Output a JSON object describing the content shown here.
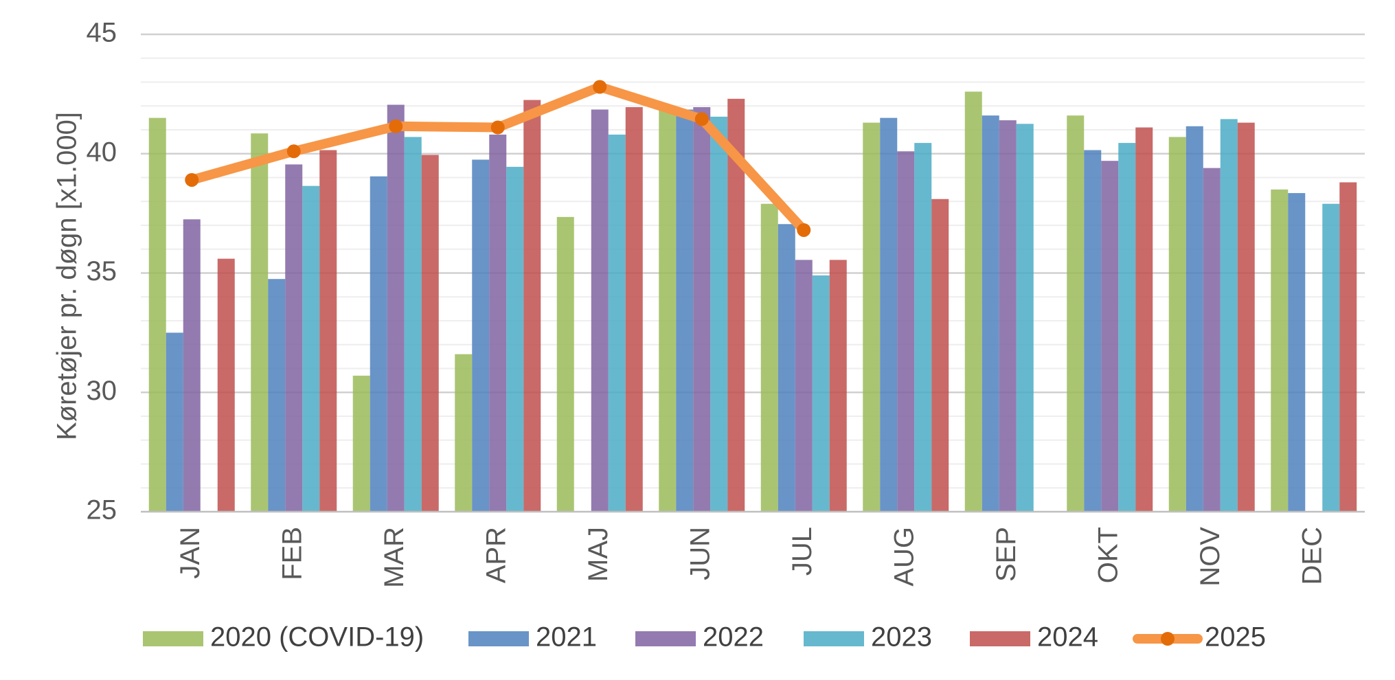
{
  "chart_data": {
    "type": "bar",
    "title": "",
    "xlabel": "",
    "ylabel": "Køretøjer pr. døgn [x1.000]",
    "ylim": [
      25,
      45
    ],
    "yticks": [
      25,
      30,
      35,
      40,
      45
    ],
    "grid": true,
    "legend_position": "bottom",
    "categories": [
      "JAN",
      "FEB",
      "MAR",
      "APR",
      "MAJ",
      "JUN",
      "JUL",
      "AUG",
      "SEP",
      "OKT",
      "NOV",
      "DEC"
    ],
    "series": [
      {
        "name": "2020 (COVID-19)",
        "type": "bar",
        "color": "#9BBB59",
        "values": [
          41.5,
          40.85,
          30.7,
          31.6,
          37.35,
          41.85,
          37.9,
          41.3,
          42.6,
          41.6,
          40.7,
          38.5
        ]
      },
      {
        "name": "2021",
        "type": "bar",
        "color": "#4F81BD",
        "values": [
          32.5,
          34.75,
          39.05,
          39.75,
          null,
          41.85,
          37.05,
          41.5,
          41.6,
          40.15,
          41.15,
          38.35
        ]
      },
      {
        "name": "2022",
        "type": "bar",
        "color": "#8064A2",
        "values": [
          37.25,
          39.55,
          42.05,
          40.8,
          41.85,
          41.95,
          35.55,
          40.1,
          41.4,
          39.7,
          39.4,
          null
        ]
      },
      {
        "name": "2023",
        "type": "bar",
        "color": "#4BACC6",
        "values": [
          null,
          38.65,
          40.7,
          39.45,
          40.8,
          41.55,
          34.9,
          40.45,
          41.25,
          40.45,
          41.45,
          37.9
        ]
      },
      {
        "name": "2024",
        "type": "bar",
        "color": "#C0504D",
        "values": [
          35.6,
          40.15,
          39.95,
          42.25,
          41.95,
          42.3,
          35.55,
          38.1,
          null,
          41.1,
          41.3,
          38.8
        ]
      },
      {
        "name": "2025",
        "type": "line",
        "color": "#F79646",
        "marker_color": "#E36C09",
        "values": [
          38.9,
          40.1,
          41.15,
          41.1,
          42.8,
          41.45,
          36.8,
          null,
          null,
          null,
          null,
          null
        ]
      }
    ]
  }
}
